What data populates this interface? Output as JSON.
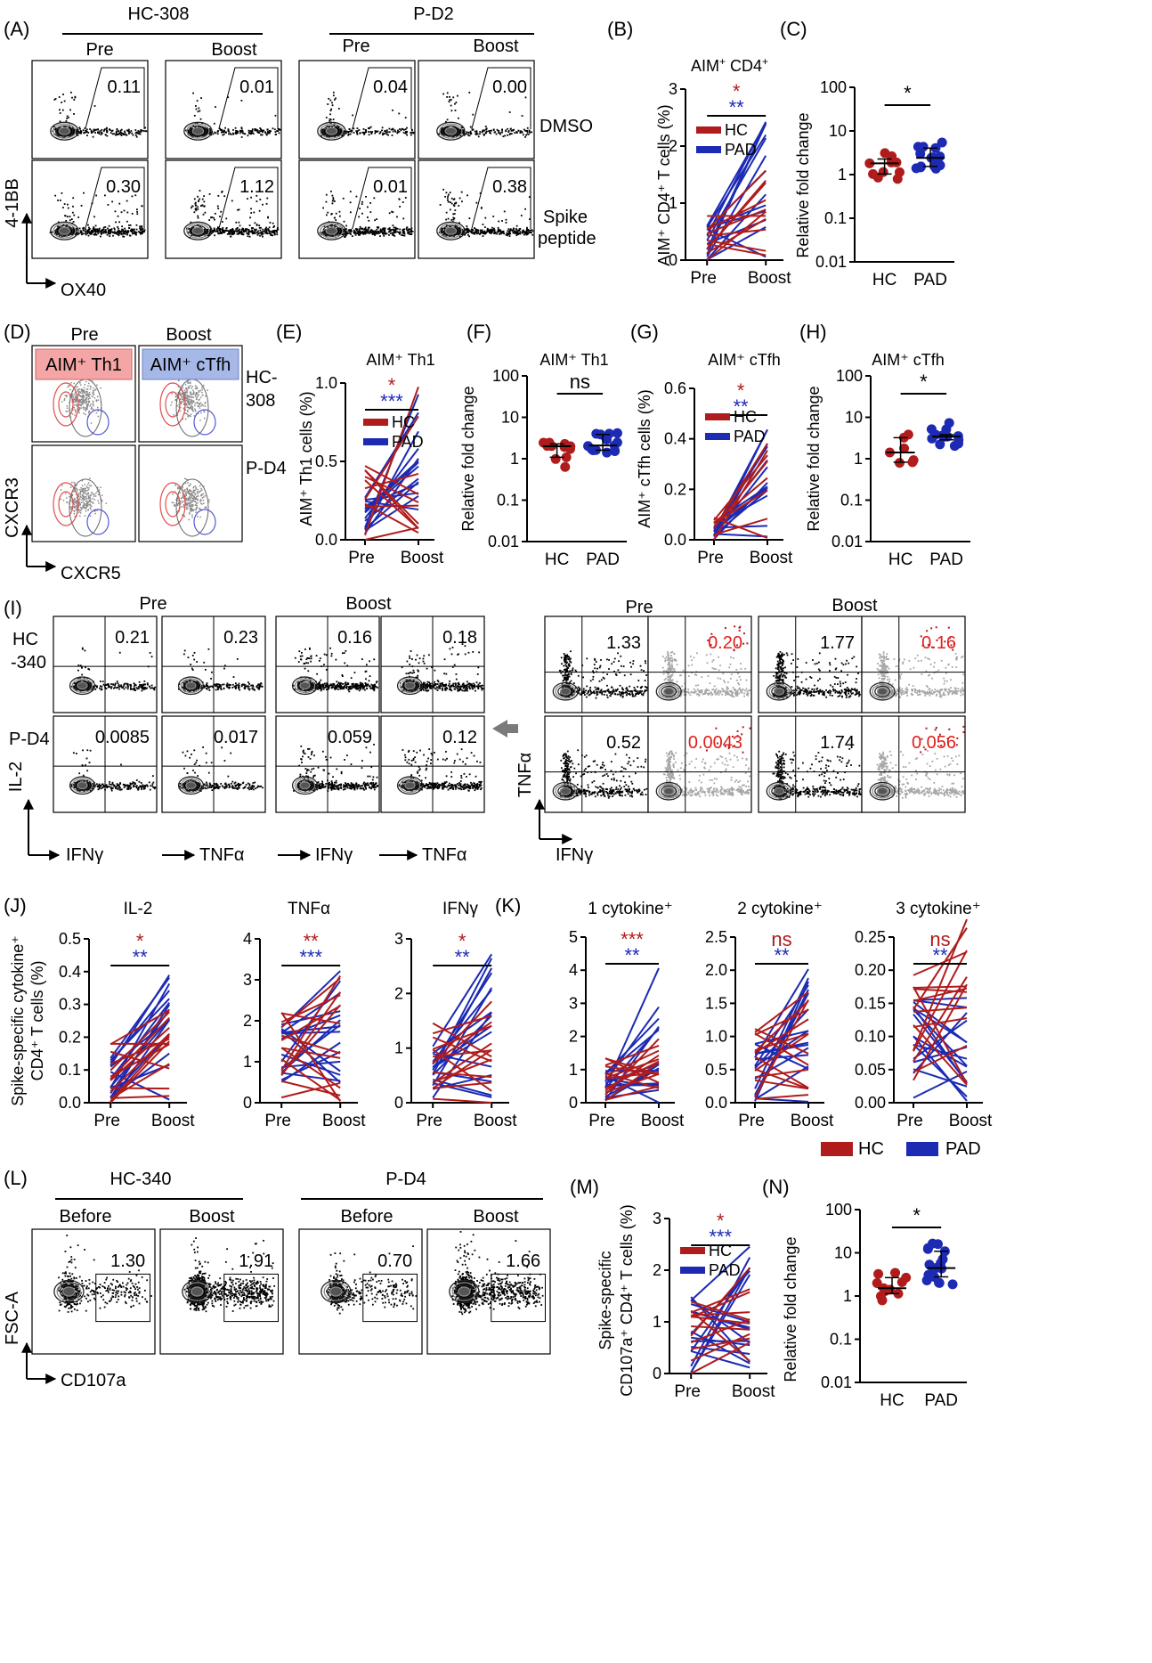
{
  "colors": {
    "hc": "#b01c1c",
    "pad": "#1c2ab4",
    "gray": "#a6a6a6",
    "th1": "#f4a6a6",
    "cfh": "#a6b8e8"
  },
  "panelA": {
    "letter": "(A)",
    "group1": "HC-308",
    "group2": "P-D2",
    "pre": "Pre",
    "boost": "Boost",
    "row1": "DMSO",
    "row2a": "Spike",
    "row2b": "peptide",
    "values": [
      "0.11",
      "0.01",
      "0.04",
      "0.00",
      "0.30",
      "1.12",
      "0.01",
      "0.38"
    ],
    "yaxis": "4-1BB",
    "xaxis": "OX40"
  },
  "panelB": {
    "letter": "(B)",
    "title_main": "AIM",
    "title_sup": "+",
    "title_rest": " CD4",
    "title_sup2": "+",
    "ylabel": "AIM⁺ CD4⁺ T cells (%)",
    "sig_hc": "*",
    "sig_pad": "**",
    "legend_hc": "HC",
    "legend_pad": "PAD",
    "xticks": [
      "Pre",
      "Boost"
    ],
    "yticks": [
      "0",
      "1",
      "2",
      "3"
    ]
  },
  "panelC": {
    "letter": "(C)",
    "ylabel": "Relative fold change",
    "sig": "*",
    "xticks": [
      "HC",
      "PAD"
    ],
    "yticks": [
      "0.01",
      "0.1",
      "1",
      "10",
      "100"
    ]
  },
  "panelD": {
    "letter": "(D)",
    "pre": "Pre",
    "boost": "Boost",
    "box_th1": "AIM⁺ Th1",
    "box_cfh": "AIM⁺ cTfh",
    "row1a": "HC-",
    "row1b": "308",
    "row2": "P-D4",
    "yaxis": "CXCR3",
    "xaxis": "CXCR5"
  },
  "panelE": {
    "letter": "(E)",
    "title": "AIM⁺ Th1",
    "ylabel": "AIM⁺ Th1 cells (%)",
    "sig_hc": "*",
    "sig_pad": "***",
    "legend_hc": "HC",
    "legend_pad": "PAD",
    "xticks": [
      "Pre",
      "Boost"
    ],
    "yticks": [
      "0.0",
      "0.5",
      "1.0"
    ]
  },
  "panelF": {
    "letter": "(F)",
    "title": "AIM⁺ Th1",
    "ylabel": "Relative fold change",
    "sig": "ns",
    "xticks": [
      "HC",
      "PAD"
    ],
    "yticks": [
      "0.01",
      "0.1",
      "1",
      "10",
      "100"
    ]
  },
  "panelG": {
    "letter": "(G)",
    "title": "AIM⁺ cTfh",
    "ylabel": "AIM⁺ cTfh cells (%)",
    "sig_hc": "*",
    "sig_pad": "**",
    "legend_hc": "HC",
    "legend_pad": "PAD",
    "xticks": [
      "Pre",
      "Boost"
    ],
    "yticks": [
      "0.0",
      "0.2",
      "0.4",
      "0.6"
    ]
  },
  "panelH": {
    "letter": "(H)",
    "title": "AIM⁺ cTfh",
    "ylabel": "Relative fold change",
    "sig": "*",
    "xticks": [
      "HC",
      "PAD"
    ],
    "yticks": [
      "0.01",
      "0.1",
      "1",
      "10",
      "100"
    ]
  },
  "panelI": {
    "letter": "(I)",
    "pre": "Pre",
    "boost": "Boost",
    "row1a": "HC",
    "row1b": "-340",
    "row2": "P-D4",
    "values_left": [
      "0.21",
      "0.23",
      "0.16",
      "0.18",
      "0.0085",
      "0.017",
      "0.059",
      "0.12"
    ],
    "values_right_black": [
      "1.33",
      "1.77",
      "0.52",
      "1.74"
    ],
    "values_right_red": [
      "0.20",
      "0.16",
      "0.0043",
      "0.056"
    ],
    "yaxis_left": "IL-2",
    "x_ifn": "IFNγ",
    "x_tnf": "TNFα",
    "yaxis_right": "TNFα",
    "xaxis_right": "IFNγ"
  },
  "panelJ": {
    "letter": "(J)",
    "ylabel1": "Spike-specific cytokine⁺",
    "ylabel2": "CD4⁺ T cells (%)",
    "plots": [
      {
        "title": "IL-2",
        "sig_hc": "*",
        "sig_pad": "**",
        "yticks": [
          "0.0",
          "0.1",
          "0.2",
          "0.3",
          "0.4",
          "0.5"
        ]
      },
      {
        "title": "TNFα",
        "sig_hc": "**",
        "sig_pad": "***",
        "yticks": [
          "0",
          "1",
          "2",
          "3",
          "4"
        ]
      },
      {
        "title": "IFNγ",
        "sig_hc": "*",
        "sig_pad": "**",
        "yticks": [
          "0",
          "1",
          "2",
          "3"
        ]
      }
    ],
    "xticks": [
      "Pre",
      "Boost"
    ]
  },
  "panelK": {
    "letter": "(K)",
    "plots": [
      {
        "title": "1 cytokine⁺",
        "sig_hc": "***",
        "sig_pad": "**",
        "yticks": [
          "0",
          "1",
          "2",
          "3",
          "4",
          "5"
        ]
      },
      {
        "title": "2 cytokine⁺",
        "sig_hc": "ns",
        "sig_pad": "**",
        "yticks": [
          "0.0",
          "0.5",
          "1.0",
          "1.5",
          "2.0",
          "2.5"
        ]
      },
      {
        "title": "3 cytokine⁺",
        "sig_hc": "ns",
        "sig_pad": "**",
        "yticks": [
          "0.00",
          "0.05",
          "0.10",
          "0.15",
          "0.20",
          "0.25"
        ]
      }
    ],
    "xticks": [
      "Pre",
      "Boost"
    ],
    "legend_hc": "HC",
    "legend_pad": "PAD"
  },
  "panelL": {
    "letter": "(L)",
    "group1": "HC-340",
    "group2": "P-D4",
    "before": "Before",
    "boost": "Boost",
    "values": [
      "1.30",
      "1.91",
      "0.70",
      "1.66"
    ],
    "yaxis": "FSC-A",
    "xaxis": "CD107a"
  },
  "panelM": {
    "letter": "(M)",
    "ylabel1": "Spike-specific",
    "ylabel2": "CD107a⁺ CD4⁺ T cells (%)",
    "sig_hc": "*",
    "sig_pad": "***",
    "legend_hc": "HC",
    "legend_pad": "PAD",
    "xticks": [
      "Pre",
      "Boost"
    ],
    "yticks": [
      "0",
      "1",
      "2",
      "3"
    ]
  },
  "panelN": {
    "letter": "(N)",
    "ylabel": "Relative fold change",
    "sig": "*",
    "xticks": [
      "HC",
      "PAD"
    ],
    "yticks": [
      "0.01",
      "0.1",
      "1",
      "10",
      "100"
    ]
  }
}
